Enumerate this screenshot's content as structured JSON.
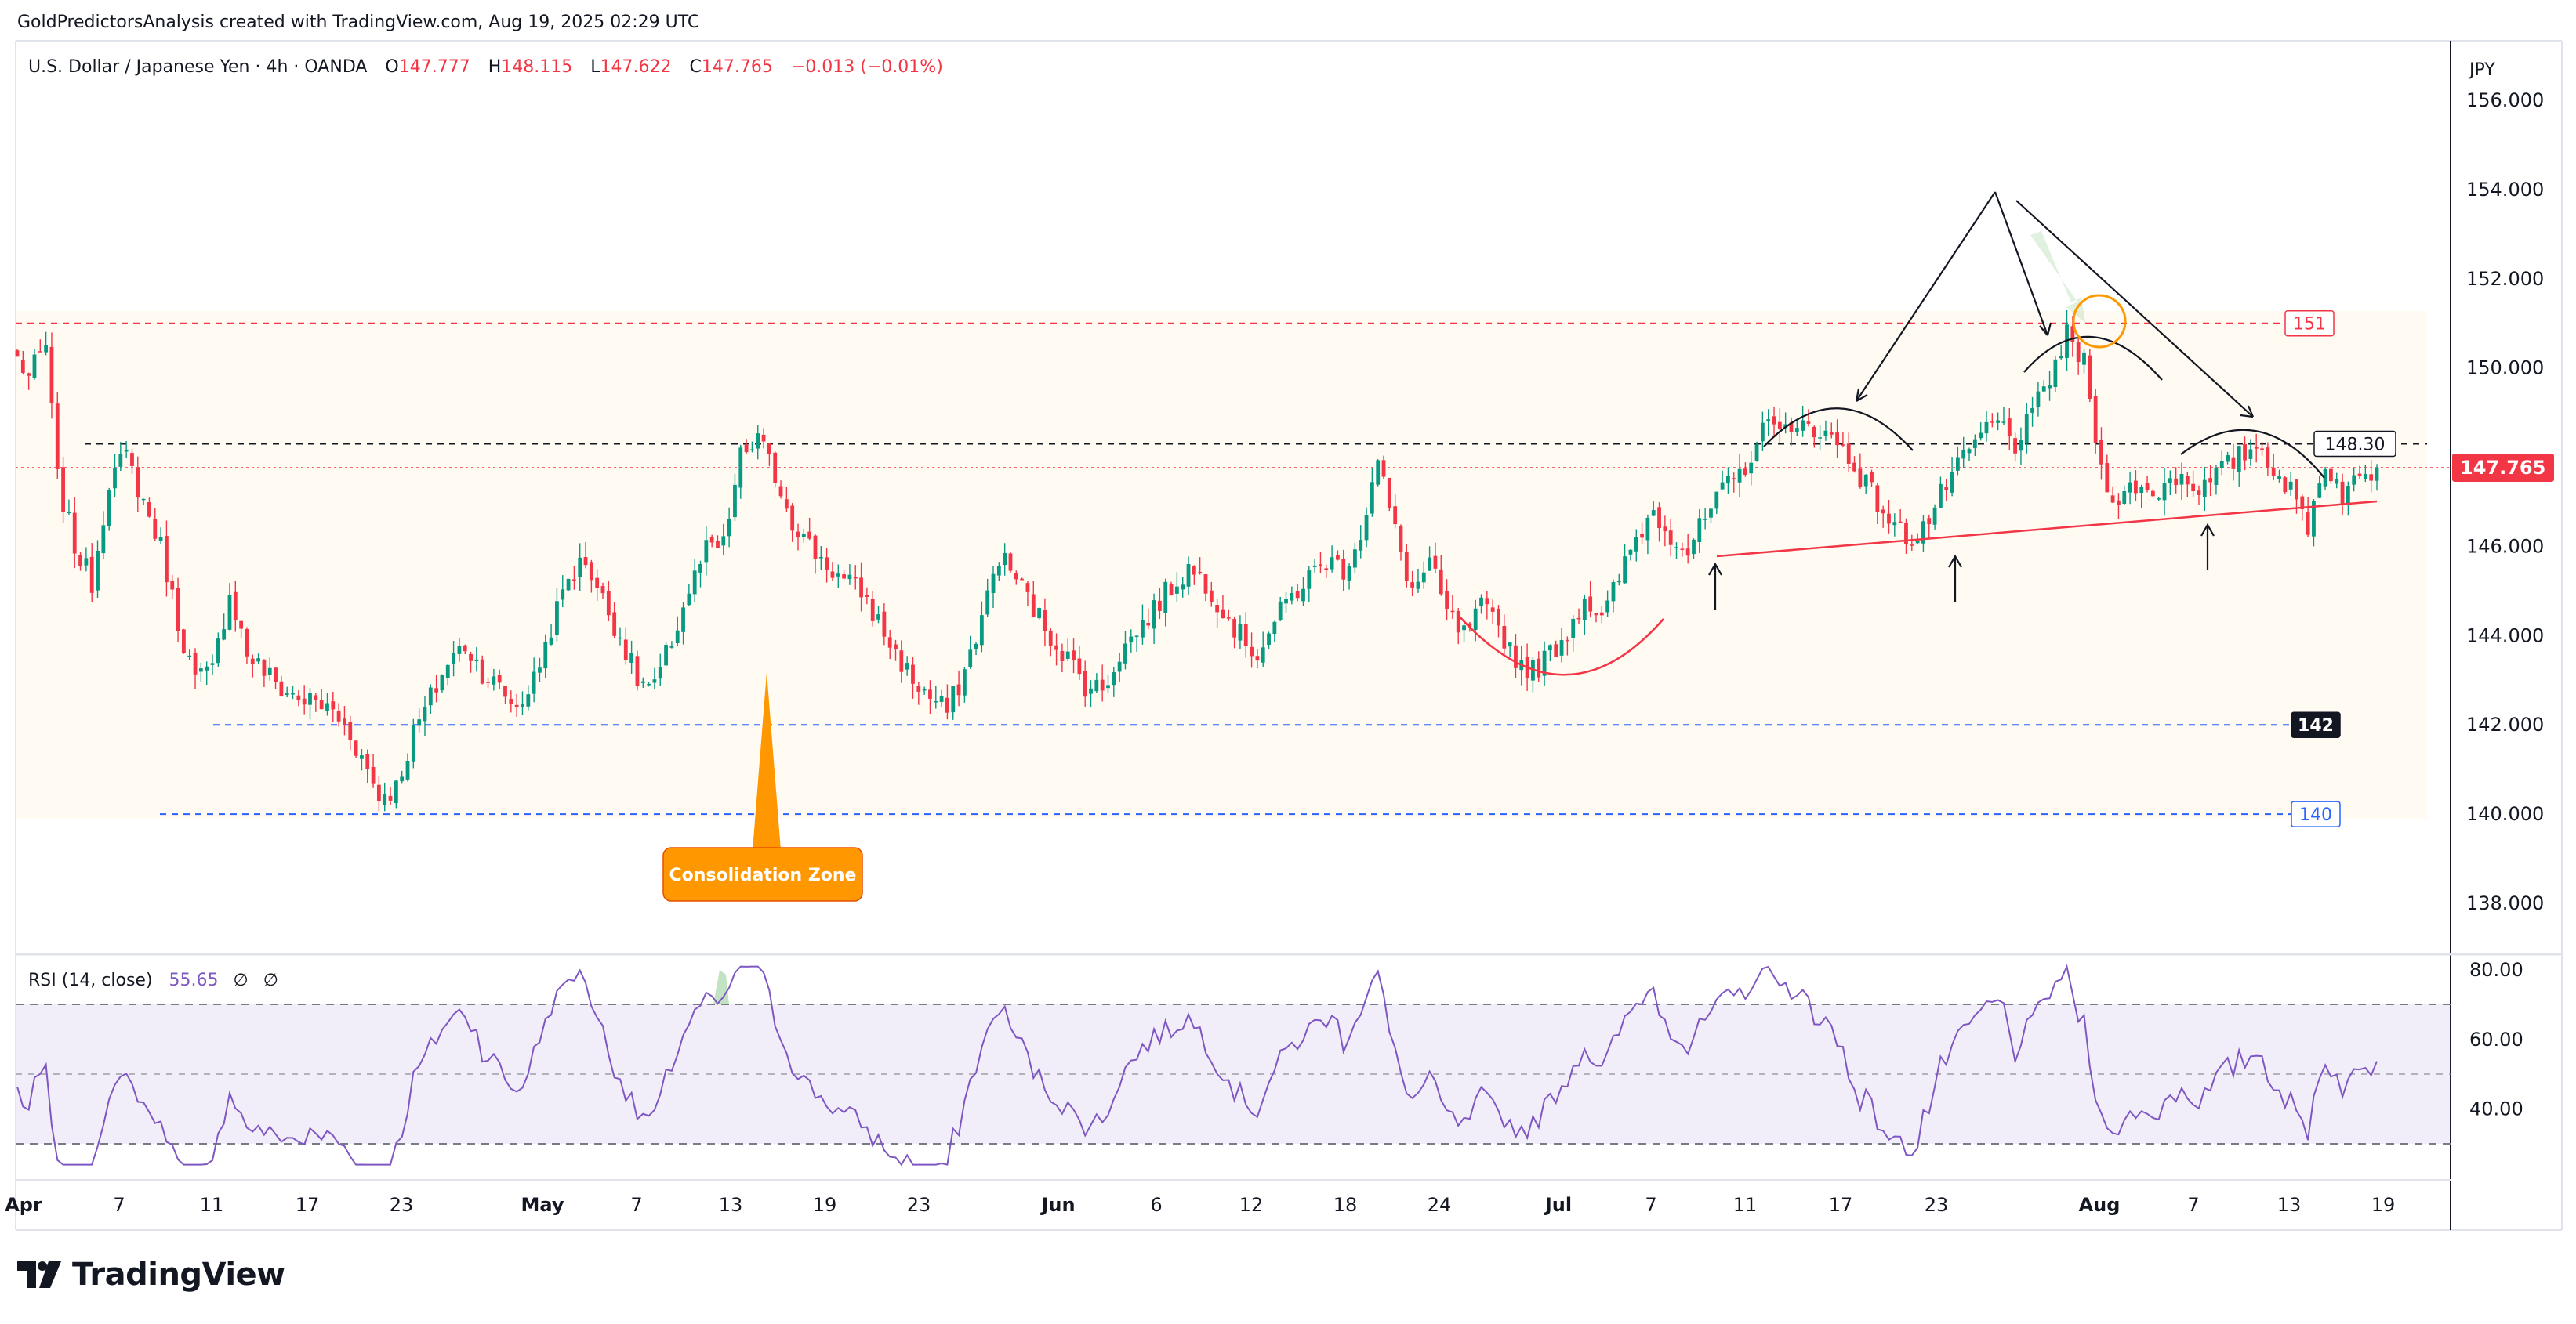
{
  "header": {
    "credit": "GoldPredictorsAnalysis created with TradingView.com, Aug 19, 2025 02:29 UTC"
  },
  "legend": {
    "symbol": "U.S. Dollar / Japanese Yen · 4h · OANDA",
    "open_label": "O",
    "open": "147.777",
    "high_label": "H",
    "high": "148.115",
    "low_label": "L",
    "low": "147.622",
    "close_label": "C",
    "close": "147.765",
    "change": "−0.013 (−0.01%)"
  },
  "currency": "JPY",
  "price_axis": {
    "ticks": [
      {
        "value": 156,
        "label": "156.000"
      },
      {
        "value": 154,
        "label": "154.000"
      },
      {
        "value": 152,
        "label": "152.000"
      },
      {
        "value": 150,
        "label": "150.000"
      },
      {
        "value": 146,
        "label": "146.000"
      },
      {
        "value": 144,
        "label": "144.000"
      },
      {
        "value": 142,
        "label": "142.000"
      },
      {
        "value": 140,
        "label": "140.000"
      },
      {
        "value": 138,
        "label": "138.000"
      }
    ],
    "last_price_label": "147.765",
    "last_price": 147.765
  },
  "levels": [
    {
      "name": "resistance-151",
      "value": 151,
      "label": "151",
      "color": "#f23645"
    },
    {
      "name": "neckline-148-30",
      "value": 148.3,
      "label": "148.30",
      "color": "#131722"
    },
    {
      "name": "support-142",
      "value": 142,
      "label": "142",
      "color": "#2962ff"
    },
    {
      "name": "support-140",
      "value": 140,
      "label": "140",
      "color": "#2962ff"
    }
  ],
  "annotation": {
    "label": "Consolidation Zone",
    "color": "#ff9800"
  },
  "rsi": {
    "legend": "RSI (14, close)",
    "value": "55.65",
    "na1": "∅",
    "na2": "∅",
    "ticks": [
      {
        "value": 80,
        "label": "80.00"
      },
      {
        "value": 60,
        "label": "60.00"
      },
      {
        "value": 40,
        "label": "40.00"
      }
    ],
    "upper": 70,
    "middle": 50,
    "lower": 30,
    "color": "#7e57c2"
  },
  "time_axis": {
    "labels": [
      "Apr",
      "7",
      "11",
      "17",
      "23",
      "May",
      "7",
      "13",
      "19",
      "23",
      "Jun",
      "6",
      "12",
      "18",
      "24",
      "Jul",
      "7",
      "11",
      "17",
      "23",
      "Aug",
      "7",
      "13",
      "19"
    ],
    "bold": [
      "Apr",
      "May",
      "Jun",
      "Jul",
      "Aug"
    ]
  },
  "footer": {
    "brand": "TradingView"
  },
  "chart_data": {
    "type": "candlestick",
    "title": "U.S. Dollar / Japanese Yen · 4h · OANDA",
    "ylim": [
      137,
      157
    ],
    "colors": {
      "up": "#089981",
      "down": "#f23645"
    },
    "x_categories": [
      "Apr",
      "7",
      "11",
      "17",
      "23",
      "May",
      "7",
      "13",
      "19",
      "23",
      "Jun",
      "6",
      "12",
      "18",
      "24",
      "Jul",
      "7",
      "11",
      "17",
      "23",
      "Aug",
      "7",
      "13",
      "19"
    ],
    "close_path": [
      [
        0,
        150.2
      ],
      [
        2,
        149.8
      ],
      [
        5,
        150.5
      ],
      [
        7,
        147.5
      ],
      [
        10,
        146.0
      ],
      [
        13,
        145.2
      ],
      [
        16,
        147.5
      ],
      [
        19,
        148.0
      ],
      [
        22,
        147.0
      ],
      [
        25,
        146.0
      ],
      [
        28,
        144.3
      ],
      [
        31,
        143.0
      ],
      [
        34,
        143.2
      ],
      [
        37,
        145.0
      ],
      [
        40,
        143.6
      ],
      [
        43,
        143.2
      ],
      [
        46,
        142.8
      ],
      [
        49,
        142.6
      ],
      [
        52,
        142.5
      ],
      [
        55,
        142.3
      ],
      [
        58,
        141.8
      ],
      [
        61,
        141.0
      ],
      [
        63,
        140.4
      ],
      [
        66,
        140.6
      ],
      [
        69,
        141.8
      ],
      [
        72,
        142.6
      ],
      [
        75,
        143.4
      ],
      [
        78,
        143.8
      ],
      [
        81,
        143.2
      ],
      [
        84,
        142.8
      ],
      [
        87,
        142.4
      ],
      [
        90,
        143.0
      ],
      [
        93,
        144.2
      ],
      [
        96,
        145.3
      ],
      [
        99,
        145.7
      ],
      [
        102,
        144.8
      ],
      [
        105,
        144.0
      ],
      [
        108,
        143.0
      ],
      [
        111,
        142.8
      ],
      [
        114,
        143.9
      ],
      [
        117,
        145.0
      ],
      [
        120,
        145.9
      ],
      [
        123,
        146.0
      ],
      [
        126,
        148.0
      ],
      [
        129,
        148.4
      ],
      [
        132,
        147.6
      ],
      [
        135,
        146.6
      ],
      [
        138,
        146.0
      ],
      [
        141,
        145.6
      ],
      [
        144,
        145.2
      ],
      [
        147,
        145.0
      ],
      [
        150,
        144.3
      ],
      [
        153,
        143.6
      ],
      [
        156,
        143.0
      ],
      [
        159,
        142.6
      ],
      [
        162,
        142.3
      ],
      [
        165,
        143.2
      ],
      [
        168,
        144.4
      ],
      [
        171,
        145.8
      ],
      [
        174,
        145.3
      ],
      [
        177,
        144.6
      ],
      [
        180,
        144.0
      ],
      [
        183,
        143.5
      ],
      [
        186,
        142.9
      ],
      [
        189,
        142.8
      ],
      [
        192,
        143.6
      ],
      [
        195,
        144.1
      ],
      [
        198,
        144.6
      ],
      [
        201,
        145.1
      ],
      [
        204,
        145.5
      ],
      [
        207,
        145.2
      ],
      [
        210,
        144.6
      ],
      [
        213,
        144.0
      ],
      [
        216,
        143.6
      ],
      [
        219,
        144.3
      ],
      [
        222,
        144.9
      ],
      [
        225,
        145.3
      ],
      [
        228,
        145.7
      ],
      [
        231,
        145.5
      ],
      [
        234,
        146.3
      ],
      [
        237,
        147.9
      ],
      [
        240,
        146.3
      ],
      [
        243,
        145.0
      ],
      [
        246,
        145.6
      ],
      [
        249,
        144.5
      ],
      [
        252,
        144.0
      ],
      [
        255,
        144.6
      ],
      [
        258,
        144.2
      ],
      [
        261,
        143.5
      ],
      [
        264,
        143.2
      ],
      [
        267,
        143.6
      ],
      [
        270,
        144.1
      ],
      [
        273,
        144.9
      ],
      [
        276,
        144.3
      ],
      [
        279,
        145.3
      ],
      [
        282,
        146.2
      ],
      [
        285,
        146.8
      ],
      [
        288,
        146.3
      ],
      [
        291,
        145.9
      ],
      [
        294,
        146.6
      ],
      [
        297,
        147.2
      ],
      [
        300,
        147.6
      ],
      [
        303,
        148.3
      ],
      [
        306,
        149.0
      ],
      [
        309,
        148.4
      ],
      [
        312,
        148.8
      ],
      [
        315,
        148.5
      ],
      [
        318,
        148.2
      ],
      [
        321,
        147.6
      ],
      [
        324,
        147.0
      ],
      [
        327,
        146.4
      ],
      [
        330,
        146.2
      ],
      [
        333,
        146.6
      ],
      [
        336,
        147.4
      ],
      [
        339,
        147.9
      ],
      [
        342,
        148.5
      ],
      [
        345,
        148.8
      ],
      [
        348,
        148.3
      ],
      [
        351,
        148.9
      ],
      [
        354,
        149.8
      ],
      [
        357,
        150.7
      ],
      [
        360,
        150.1
      ],
      [
        363,
        147.7
      ],
      [
        366,
        147.0
      ],
      [
        369,
        147.4
      ],
      [
        372,
        147.1
      ],
      [
        375,
        147.6
      ],
      [
        378,
        147.5
      ],
      [
        381,
        147.3
      ],
      [
        384,
        147.7
      ],
      [
        387,
        148.0
      ],
      [
        390,
        148.3
      ],
      [
        393,
        147.8
      ],
      [
        396,
        147.2
      ],
      [
        399,
        146.5
      ],
      [
        402,
        147.9
      ],
      [
        405,
        147.2
      ],
      [
        408,
        147.5
      ],
      [
        411,
        147.765
      ]
    ]
  }
}
